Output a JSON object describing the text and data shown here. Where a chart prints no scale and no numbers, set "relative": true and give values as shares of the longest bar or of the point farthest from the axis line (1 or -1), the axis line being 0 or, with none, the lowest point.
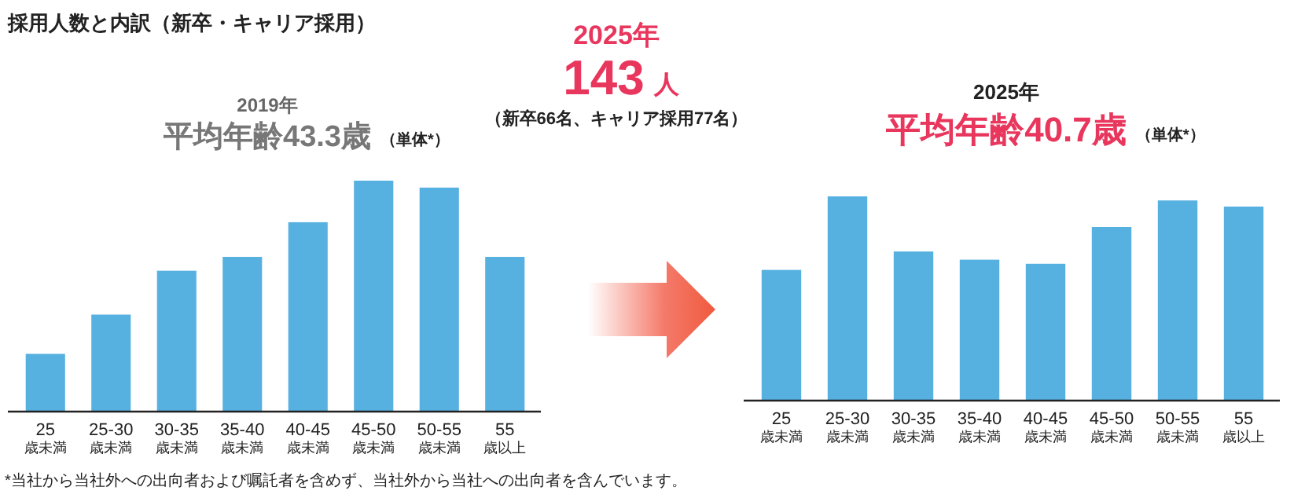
{
  "chart_data": [
    {
      "type": "bar",
      "subtitle": "2019年",
      "title": "平均年齢43.3歳",
      "relative": true,
      "color": "#56b1e0",
      "categories": [
        "25\n歳未満",
        "25-30\n歳未満",
        "30-35\n歳未満",
        "35-40\n歳未満",
        "40-45\n歳未満",
        "45-50\n歳未満",
        "50-55\n歳未満",
        "55\n歳以上"
      ],
      "values": [
        0.25,
        0.42,
        0.61,
        0.67,
        0.82,
        1,
        0.97,
        0.67
      ],
      "annotations": [
        "（単体*）",
        "採用人数と内訳（新卒・キャリア採用）",
        "*当社から当社外への出向者および嘱託者を含めず、当社外から当社への出向者を含んでいます。"
      ]
    },
    {
      "type": "other",
      "title": "2025年",
      "annotations": [
        "143",
        "人",
        "（新卒66名、キャリア採用77名）"
      ]
    },
    {
      "type": "bar",
      "subtitle": "2025年",
      "title": "平均年齢40.7歳",
      "relative": true,
      "color": "#56b1e0",
      "categories": [
        "25\n歳未満",
        "25-30\n歳未満",
        "30-35\n歳未満",
        "35-40\n歳未満",
        "40-45\n歳未満",
        "45-50\n歳未満",
        "50-55\n歳未満",
        "55\n歳以上"
      ],
      "values": [
        0.64,
        1,
        0.73,
        0.69,
        0.67,
        0.85,
        0.98,
        0.95
      ],
      "annotations": [
        "（単体*）"
      ]
    }
  ]
}
